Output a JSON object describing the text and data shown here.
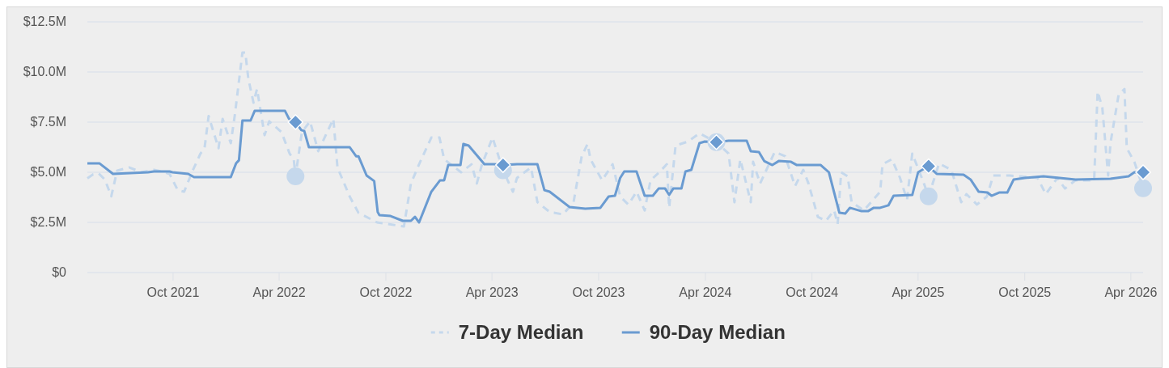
{
  "chart_data": {
    "type": "line",
    "xlim": [
      "2021-05-07",
      "2026-04-22"
    ],
    "xticks": [
      {
        "value": "2021-10-01",
        "label": "Oct 2021"
      },
      {
        "value": "2022-04-01",
        "label": "Apr 2022"
      },
      {
        "value": "2022-10-01",
        "label": "Oct 2022"
      },
      {
        "value": "2023-04-01",
        "label": "Apr 2023"
      },
      {
        "value": "2023-10-01",
        "label": "Oct 2023"
      },
      {
        "value": "2024-04-01",
        "label": "Apr 2024"
      },
      {
        "value": "2024-10-01",
        "label": "Oct 2024"
      },
      {
        "value": "2025-04-01",
        "label": "Apr 2025"
      },
      {
        "value": "2025-10-01",
        "label": "Oct 2025"
      },
      {
        "value": "2026-04-01",
        "label": "Apr 2026"
      }
    ],
    "ylim": [
      0,
      12.5
    ],
    "yticks": [
      {
        "value": 0,
        "label": "$0"
      },
      {
        "value": 2.5,
        "label": "$2.5M"
      },
      {
        "value": 5,
        "label": "$5.0M"
      },
      {
        "value": 7.5,
        "label": "$7.5M"
      },
      {
        "value": 10,
        "label": "$10.0M"
      },
      {
        "value": 12.5,
        "label": "$12.5M"
      }
    ],
    "grid": "y",
    "legend": "bottom",
    "series": [
      {
        "name": "7-Day Median",
        "color": "#c5d8ec",
        "line_style": "dashed",
        "marker": "none",
        "x": [
          "2021-05-07",
          "2021-05-17",
          "2021-05-26",
          "2021-06-06",
          "2021-06-17",
          "2021-06-27",
          "2021-07-18",
          "2021-08-08",
          "2021-08-29",
          "2021-09-12",
          "2021-09-25",
          "2021-10-09",
          "2021-10-20",
          "2021-11-03",
          "2021-11-17",
          "2021-11-24",
          "2021-12-01",
          "2021-12-18",
          "2021-12-25",
          "2022-01-08",
          "2022-01-15",
          "2022-01-28",
          "2022-02-02",
          "2022-02-07",
          "2022-02-16",
          "2022-02-22",
          "2022-03-07",
          "2022-03-15",
          "2022-04-05",
          "2022-04-19",
          "2022-04-26",
          "2022-04-29",
          "2022-05-10",
          "2022-05-24",
          "2022-06-07",
          "2022-07-03",
          "2022-07-10",
          "2022-07-31",
          "2022-08-15",
          "2022-09-16",
          "2022-11-01",
          "2022-11-13",
          "2022-11-27",
          "2022-12-18",
          "2023-01-01",
          "2023-01-09",
          "2023-02-07",
          "2023-02-25",
          "2023-03-06",
          "2023-03-15",
          "2023-04-02",
          "2023-04-20",
          "2023-05-07",
          "2023-05-14",
          "2023-06-07",
          "2023-06-18",
          "2023-07-09",
          "2023-08-01",
          "2023-08-19",
          "2023-09-02",
          "2023-09-12",
          "2023-09-17",
          "2023-10-07",
          "2023-10-25",
          "2023-11-07",
          "2023-11-21",
          "2023-12-05",
          "2023-12-19",
          "2023-12-29",
          "2024-01-13",
          "2024-01-26",
          "2024-01-30",
          "2024-02-10",
          "2024-03-02",
          "2024-03-22",
          "2024-04-20",
          "2024-05-11",
          "2024-05-21",
          "2024-05-31",
          "2024-06-18",
          "2024-06-22",
          "2024-07-04",
          "2024-07-29",
          "2024-08-16",
          "2024-09-02",
          "2024-09-16",
          "2024-09-25",
          "2024-10-11",
          "2024-10-25",
          "2024-11-08",
          "2024-11-14",
          "2024-11-20",
          "2024-12-01",
          "2024-12-08",
          "2024-12-29",
          "2025-01-26",
          "2025-01-30",
          "2025-02-15",
          "2025-03-01",
          "2025-03-13",
          "2025-03-22",
          "2025-04-09",
          "2025-04-19",
          "2025-05-07",
          "2025-05-28",
          "2025-06-14",
          "2025-06-23",
          "2025-07-11",
          "2025-07-28",
          "2025-08-08",
          "2025-09-05",
          "2025-10-23",
          "2025-11-06",
          "2025-11-26",
          "2025-12-09",
          "2025-12-27",
          "2026-01-28",
          "2026-02-03",
          "2026-02-11",
          "2026-02-21",
          "2026-02-25",
          "2026-03-11",
          "2026-03-21",
          "2026-03-25",
          "2026-04-07",
          "2026-04-22"
        ],
        "values": [
          4.7,
          4.9,
          4.95,
          4.64,
          3.8,
          5.08,
          5.24,
          5.0,
          5.12,
          5.04,
          4.92,
          4.11,
          4.03,
          5.04,
          5.93,
          6.2,
          7.8,
          6.2,
          7.66,
          6.45,
          7.86,
          10.97,
          10.97,
          9.68,
          8.47,
          9.15,
          6.85,
          7.54,
          7.0,
          5.93,
          5.65,
          4.8,
          7.0,
          7.54,
          6.05,
          7.66,
          5.24,
          3.79,
          2.98,
          2.5,
          2.3,
          4.44,
          5.4,
          6.73,
          6.73,
          5.65,
          5.0,
          5.4,
          4.44,
          5.4,
          6.73,
          5.1,
          4.03,
          4.72,
          5.24,
          3.51,
          3.02,
          2.9,
          3.51,
          5.8,
          6.41,
          5.65,
          4.6,
          5.4,
          3.79,
          3.39,
          4.03,
          3.1,
          4.6,
          5.0,
          5.4,
          3.23,
          6.33,
          6.53,
          6.94,
          6.5,
          5.93,
          3.51,
          5.65,
          3.51,
          5.52,
          4.44,
          6.01,
          5.8,
          4.31,
          5.12,
          4.44,
          2.78,
          2.58,
          3.1,
          2.42,
          5.0,
          4.8,
          3.51,
          3.1,
          4.03,
          5.4,
          5.65,
          4.72,
          3.63,
          5.93,
          4.6,
          3.8,
          5.44,
          5.12,
          3.51,
          3.91,
          3.39,
          3.79,
          4.84,
          4.84,
          4.72,
          3.91,
          4.72,
          4.19,
          4.6,
          4.6,
          9.03,
          8.23,
          4.84,
          6.45,
          8.87,
          9.15,
          6.2,
          5.52,
          4.2
        ]
      },
      {
        "name": "90-Day Median",
        "color": "#6a9bd1",
        "line_style": "solid",
        "marker": "none",
        "x": [
          "2021-05-07",
          "2021-05-28",
          "2021-06-20",
          "2021-08-19",
          "2021-08-29",
          "2021-09-25",
          "2021-09-30",
          "2021-10-27",
          "2021-11-06",
          "2022-01-08",
          "2022-01-17",
          "2022-01-22",
          "2022-01-28",
          "2022-02-11",
          "2022-02-18",
          "2022-04-11",
          "2022-04-18",
          "2022-04-29",
          "2022-05-09",
          "2022-05-14",
          "2022-05-22",
          "2022-07-31",
          "2022-08-11",
          "2022-08-15",
          "2022-08-29",
          "2022-09-11",
          "2022-09-17",
          "2022-09-20",
          "2022-10-09",
          "2022-10-30",
          "2022-11-13",
          "2022-11-20",
          "2022-11-27",
          "2022-12-18",
          "2023-01-02",
          "2023-01-09",
          "2023-01-16",
          "2023-02-06",
          "2023-02-11",
          "2023-02-20",
          "2023-03-19",
          "2023-04-05",
          "2023-04-20",
          "2023-05-14",
          "2023-06-18",
          "2023-06-30",
          "2023-07-09",
          "2023-08-12",
          "2023-09-08",
          "2023-10-04",
          "2023-10-18",
          "2023-10-29",
          "2023-11-07",
          "2023-11-14",
          "2023-12-05",
          "2023-12-19",
          "2024-01-02",
          "2024-01-12",
          "2024-01-23",
          "2024-01-30",
          "2024-02-06",
          "2024-02-20",
          "2024-02-27",
          "2024-03-08",
          "2024-03-22",
          "2024-03-31",
          "2024-04-20",
          "2024-05-11",
          "2024-06-11",
          "2024-06-18",
          "2024-07-02",
          "2024-07-11",
          "2024-07-25",
          "2024-08-05",
          "2024-08-26",
          "2024-09-05",
          "2024-10-16",
          "2024-10-30",
          "2024-11-17",
          "2024-11-27",
          "2024-12-05",
          "2024-12-25",
          "2025-01-05",
          "2025-01-15",
          "2025-01-26",
          "2025-02-09",
          "2025-02-18",
          "2025-03-22",
          "2025-04-01",
          "2025-04-08",
          "2025-04-19",
          "2025-05-03",
          "2025-06-18",
          "2025-06-30",
          "2025-07-14",
          "2025-07-29",
          "2025-08-05",
          "2025-08-18",
          "2025-09-01",
          "2025-09-12",
          "2025-10-01",
          "2025-11-02",
          "2025-12-27",
          "2026-02-25",
          "2026-03-28",
          "2026-04-07",
          "2026-04-22"
        ],
        "values": [
          5.44,
          5.44,
          4.92,
          5.0,
          5.04,
          5.04,
          5.0,
          4.92,
          4.76,
          4.76,
          5.44,
          5.6,
          7.58,
          7.58,
          8.06,
          8.06,
          7.66,
          7.5,
          7.1,
          7.06,
          6.25,
          6.25,
          5.8,
          5.8,
          4.84,
          4.56,
          3.02,
          2.86,
          2.82,
          2.58,
          2.58,
          2.78,
          2.5,
          4.03,
          4.6,
          4.6,
          5.36,
          5.36,
          6.41,
          6.33,
          5.4,
          5.4,
          5.36,
          5.4,
          5.4,
          4.11,
          4.03,
          3.27,
          3.19,
          3.23,
          3.79,
          3.83,
          4.72,
          5.04,
          5.04,
          3.83,
          3.83,
          4.19,
          4.19,
          3.87,
          4.19,
          4.19,
          5.04,
          5.12,
          6.45,
          6.53,
          6.5,
          6.57,
          6.57,
          6.05,
          6.01,
          5.56,
          5.36,
          5.56,
          5.52,
          5.36,
          5.36,
          5.0,
          2.98,
          2.94,
          3.23,
          3.06,
          3.06,
          3.23,
          3.23,
          3.35,
          3.83,
          3.87,
          5.0,
          5.12,
          5.3,
          4.92,
          4.88,
          4.64,
          4.03,
          3.99,
          3.83,
          3.99,
          3.99,
          4.64,
          4.72,
          4.8,
          4.64,
          4.68,
          4.8,
          5.0,
          5.0
        ]
      },
      {
        "type": "scatter",
        "color": "#c5d8ec",
        "marker": "circle",
        "x": [
          "2022-04-29",
          "2023-04-20",
          "2024-04-20",
          "2025-04-19",
          "2026-04-22"
        ],
        "values": [
          4.8,
          5.1,
          6.5,
          3.8,
          4.2
        ]
      },
      {
        "type": "scatter",
        "color": "#6a9bd1",
        "marker": "diamond",
        "x": [
          "2022-04-29",
          "2023-04-20",
          "2024-04-20",
          "2025-04-19",
          "2026-04-22"
        ],
        "values": [
          7.5,
          5.36,
          6.5,
          5.3,
          5.0
        ]
      }
    ]
  }
}
